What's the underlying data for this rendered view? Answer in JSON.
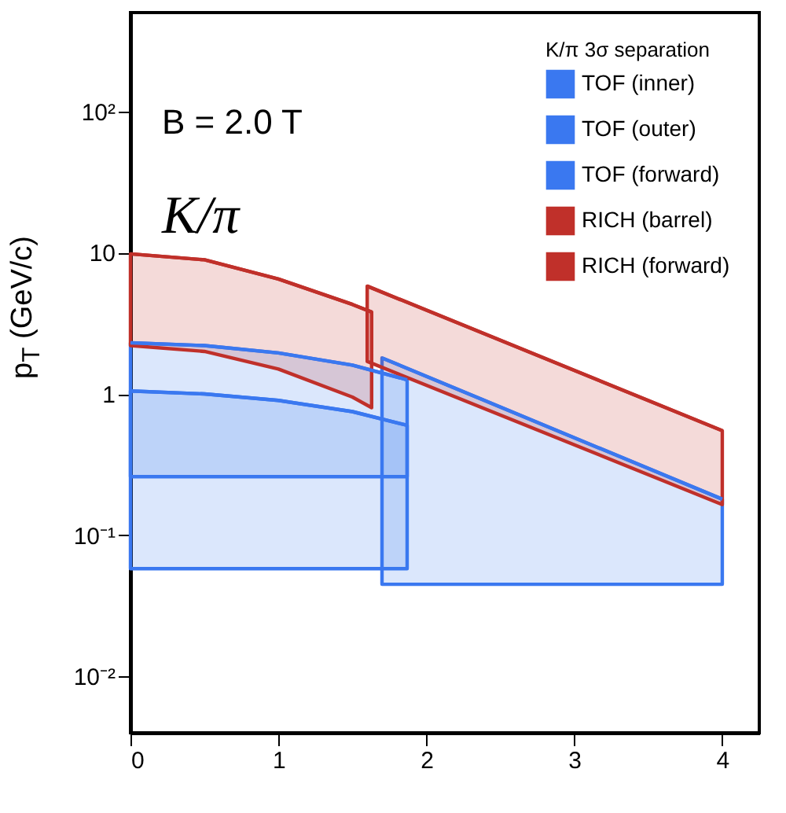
{
  "chart_data": {
    "type": "line",
    "ylabel": "p$_{T}$ (GeV/c)",
    "legend_title": "K/π 3σ separation",
    "annotations": [
      "B = 2.0 T",
      "K/π"
    ],
    "series": [
      {
        "name": "TOF (inner)",
        "color": "#3a78f0",
        "x": [
          0,
          0.5,
          1,
          1.5,
          1.87
        ],
        "values": [
          1.05,
          1.0,
          0.9,
          0.75,
          0.6
        ],
        "upper": [
          1.05,
          1.0,
          0.9,
          0.75,
          0.6
        ],
        "lower": [
          0.058,
          0.058,
          0.058,
          0.058,
          0.058
        ]
      },
      {
        "name": "TOF (outer)",
        "color": "#3a78f0",
        "x": [
          0,
          0.5,
          1,
          1.5,
          1.87
        ],
        "values": [
          2.3,
          2.2,
          1.95,
          1.6,
          1.26
        ],
        "upper": [
          2.3,
          2.2,
          1.95,
          1.6,
          1.26
        ],
        "lower": [
          0.26,
          0.26,
          0.26,
          0.26,
          0.26
        ]
      },
      {
        "name": "TOF (forward)",
        "color": "#3a78f0",
        "x": [
          1.7,
          4
        ],
        "values": [
          1.8,
          0.18
        ],
        "upper": [
          1.8,
          0.18
        ],
        "lower": [
          0.045,
          0.045
        ]
      },
      {
        "name": "RICH (barrel)",
        "color": "#c0302a",
        "x": [
          0,
          0.5,
          1,
          1.5,
          1.63
        ],
        "values": [
          9.8,
          8.9,
          6.5,
          4.3,
          3.8
        ],
        "upper": [
          9.8,
          8.9,
          6.5,
          4.3,
          3.8
        ],
        "lower": [
          2.2,
          2.0,
          1.5,
          0.95,
          0.8
        ]
      },
      {
        "name": "RICH (forward)",
        "color": "#c0302a",
        "x": [
          1.6,
          4
        ],
        "values": [
          5.8,
          0.55
        ],
        "upper": [
          5.8,
          0.55
        ],
        "lower": [
          1.7,
          0.165
        ]
      }
    ],
    "xlim": [
      0,
      4.25
    ],
    "xticks": [
      0,
      1,
      2,
      3,
      4
    ],
    "ylim": [
      0.004,
      500
    ],
    "yticks": [
      {
        "value": 0.01,
        "label": "10⁻²"
      },
      {
        "value": 0.1,
        "label": "10⁻¹"
      },
      1,
      10,
      {
        "value": 100,
        "label": "10²"
      }
    ],
    "log": "y",
    "legend": "top right"
  }
}
